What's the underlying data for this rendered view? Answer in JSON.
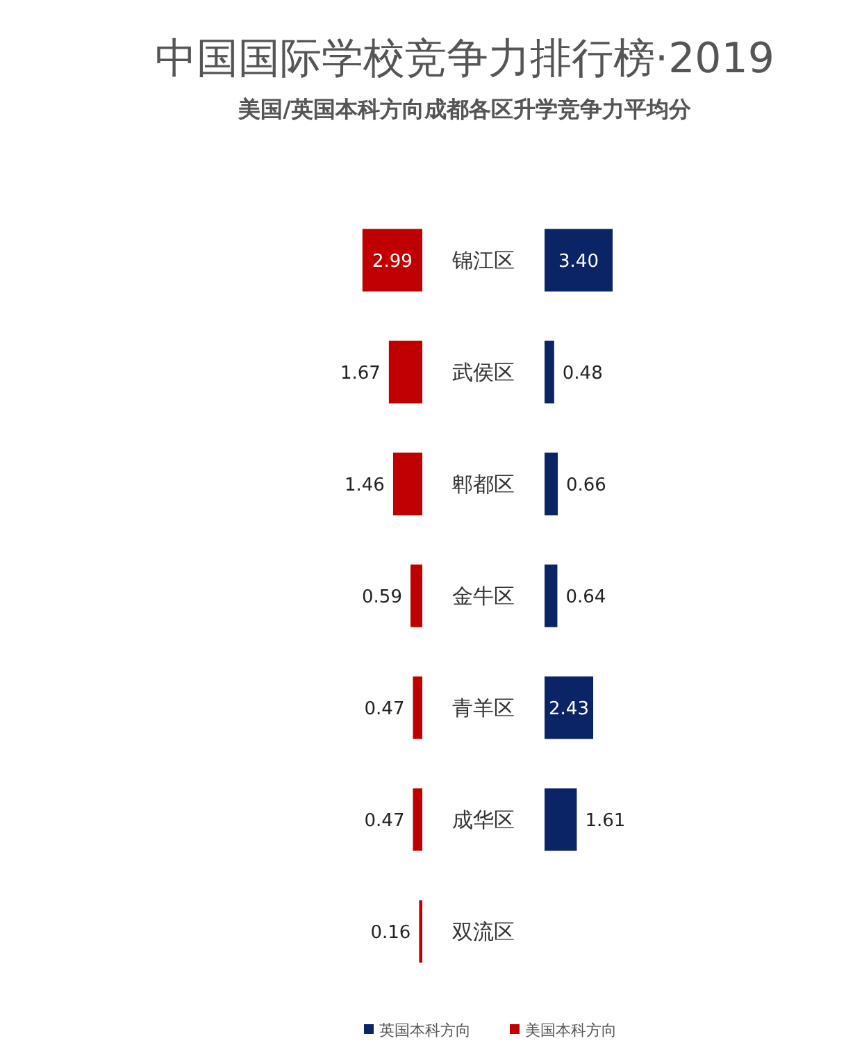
{
  "chart_data": [
    {
      "type": "bar",
      "orientation": "horizontal",
      "title": "中国国际学校竞争力排行榜·2019",
      "subtitle": "美国/英国本科方向成都各区升学竞争力平均分",
      "categories": [
        "锦江区",
        "武侯区",
        "郫都区",
        "金牛区",
        "青羊区",
        "成华区",
        "双流区"
      ],
      "series": [
        {
          "name": "美国本科方向",
          "color": "#c00000",
          "values": [
            2.99,
            1.67,
            1.46,
            0.59,
            0.47,
            0.47,
            0.16
          ],
          "value_labels": [
            "2.99",
            "1.67",
            "1.46",
            "0.59",
            "0.47",
            "0.47",
            "0.16"
          ]
        }
      ],
      "legend": "bottom"
    },
    {
      "type": "bar",
      "orientation": "horizontal",
      "categories": [
        null,
        null,
        null,
        null,
        null,
        null,
        null
      ],
      "series": [
        {
          "name": "英国本科方向",
          "color": "#0a2465",
          "values": [
            3.4,
            0.48,
            0.66,
            0.64,
            2.43,
            1.61,
            null
          ],
          "value_labels": [
            "3.40",
            "0.48",
            "0.66",
            "0.64",
            "2.43",
            "1.61",
            null
          ]
        }
      ],
      "legend": "bottom"
    }
  ]
}
